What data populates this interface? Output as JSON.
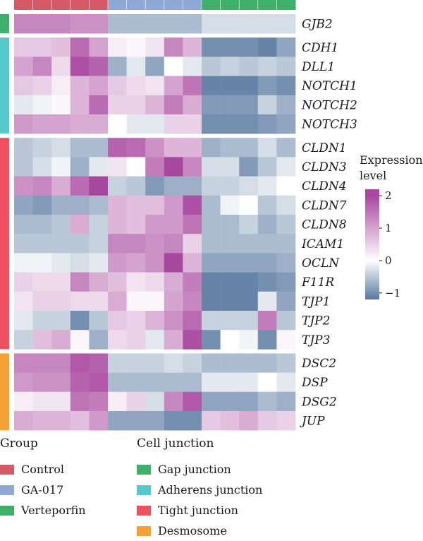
{
  "chart_data": {
    "type": "heatmap",
    "n_columns": 15,
    "column_groups": [
      "Control",
      "Control",
      "Control",
      "Control",
      "Control",
      "GA-017",
      "GA-017",
      "GA-017",
      "GA-017",
      "GA-017",
      "Verteporfin",
      "Verteporfin",
      "Verteporfin",
      "Verteporfin",
      "Verteporfin"
    ],
    "row_blocks": [
      {
        "junction": "Gap junction",
        "genes": [
          {
            "name": "GJB2",
            "values": [
              1.3,
              1.3,
              1.3,
              1.2,
              1.2,
              -0.6,
              -0.6,
              -0.6,
              -0.6,
              -0.6,
              -0.3,
              -0.3,
              -0.3,
              -0.3,
              -0.3
            ]
          }
        ]
      },
      {
        "junction": "Adherens junction",
        "genes": [
          {
            "name": "CDH1",
            "values": [
              0.6,
              0.6,
              0.7,
              1.6,
              1.0,
              0.2,
              0.1,
              0.3,
              1.3,
              0.8,
              -1.0,
              -1.0,
              -1.0,
              -1.1,
              -0.8
            ]
          },
          {
            "name": "DLL1",
            "values": [
              1.0,
              1.3,
              0.4,
              1.9,
              1.7,
              -0.7,
              -0.2,
              -0.8,
              0.0,
              -0.2,
              -0.5,
              -0.4,
              -0.5,
              -0.4,
              -0.5
            ]
          },
          {
            "name": "NOTCH1",
            "values": [
              0.6,
              0.5,
              0.2,
              0.8,
              1.0,
              0.6,
              0.4,
              0.3,
              1.0,
              1.5,
              -1.1,
              -1.1,
              -1.1,
              -0.9,
              -1.0
            ]
          },
          {
            "name": "NOTCH2",
            "values": [
              -0.2,
              -0.1,
              0.1,
              0.8,
              1.6,
              0.5,
              0.5,
              0.8,
              1.4,
              0.9,
              -0.9,
              -0.9,
              -0.9,
              -0.4,
              -0.7
            ]
          },
          {
            "name": "NOTCH3",
            "values": [
              1.1,
              1.0,
              1.0,
              0.9,
              0.9,
              0.0,
              -0.2,
              -0.2,
              0.5,
              0.5,
              -1.0,
              -1.0,
              -1.0,
              -0.9,
              -0.8
            ]
          }
        ]
      },
      {
        "junction": "Tight junction",
        "genes": [
          {
            "name": "CLDN1",
            "values": [
              -0.5,
              -0.4,
              -0.3,
              -0.6,
              -0.6,
              1.7,
              1.6,
              1.2,
              0.8,
              0.8,
              -0.7,
              -0.6,
              -0.6,
              -0.3,
              -0.6
            ]
          },
          {
            "name": "CLDN3",
            "values": [
              -0.5,
              -0.3,
              -0.1,
              -0.7,
              -0.2,
              0.3,
              0.0,
              1.4,
              2.0,
              1.3,
              -0.3,
              -0.3,
              -0.9,
              -0.5,
              -0.2
            ]
          },
          {
            "name": "CLDN4",
            "values": [
              1.2,
              1.3,
              0.9,
              1.6,
              2.0,
              -0.4,
              -0.5,
              -0.9,
              -0.7,
              -0.7,
              -0.4,
              -0.4,
              -0.3,
              -0.2,
              0.0
            ]
          },
          {
            "name": "CLDN7",
            "values": [
              -0.8,
              -0.9,
              -0.7,
              -0.7,
              -0.6,
              0.8,
              0.7,
              0.7,
              1.1,
              1.9,
              -0.6,
              -0.1,
              0.0,
              -0.5,
              -0.3
            ]
          },
          {
            "name": "CLDN8",
            "values": [
              -0.6,
              -0.6,
              -0.5,
              0.9,
              -0.4,
              0.8,
              0.7,
              1.1,
              1.1,
              1.5,
              -0.6,
              -0.6,
              -0.4,
              -0.7,
              -0.5
            ]
          },
          {
            "name": "ICAM1",
            "values": [
              -0.5,
              -0.5,
              -0.5,
              -0.5,
              -0.4,
              1.3,
              1.3,
              1.2,
              1.3,
              0.5,
              -0.6,
              -0.6,
              -0.6,
              -0.6,
              -0.6
            ]
          },
          {
            "name": "OCLN",
            "values": [
              -0.1,
              -0.1,
              -0.2,
              -0.3,
              -0.2,
              1.1,
              1.0,
              1.2,
              2.0,
              0.8,
              -0.8,
              -0.8,
              -0.8,
              -0.8,
              -0.7
            ]
          },
          {
            "name": "F11R",
            "values": [
              0.5,
              0.4,
              0.4,
              1.3,
              0.9,
              0.7,
              0.3,
              0.4,
              0.9,
              1.4,
              -1.1,
              -1.1,
              -1.1,
              -1.0,
              -0.9
            ]
          },
          {
            "name": "TJP1",
            "values": [
              0.3,
              0.5,
              0.5,
              0.4,
              0.4,
              0.9,
              0.1,
              0.1,
              1.0,
              1.3,
              -1.1,
              -1.1,
              -1.1,
              -0.2,
              -0.8
            ]
          },
          {
            "name": "TJP2",
            "values": [
              -0.2,
              -0.4,
              -0.4,
              -1.0,
              -0.5,
              0.6,
              0.5,
              0.8,
              1.2,
              1.6,
              -0.4,
              -0.4,
              -0.4,
              1.4,
              -0.5
            ]
          },
          {
            "name": "TJP3",
            "values": [
              -0.4,
              0.7,
              0.9,
              0.1,
              -0.7,
              0.4,
              0.5,
              -0.2,
              0.9,
              1.9,
              -1.0,
              0.0,
              -0.1,
              -1.0,
              0.1
            ]
          }
        ]
      },
      {
        "junction": "Desmosome",
        "genes": [
          {
            "name": "DSC2",
            "values": [
              1.3,
              1.3,
              1.3,
              1.8,
              1.7,
              -0.4,
              -0.4,
              -0.4,
              -0.3,
              -0.4,
              -0.6,
              -0.6,
              -0.6,
              -0.6,
              -0.5
            ]
          },
          {
            "name": "DSP",
            "values": [
              1.1,
              1.2,
              1.2,
              1.7,
              1.8,
              -0.6,
              -0.6,
              -0.6,
              -0.6,
              -0.6,
              -0.2,
              -0.2,
              -0.2,
              0.0,
              -0.2
            ]
          },
          {
            "name": "DSG2",
            "values": [
              0.2,
              0.3,
              0.3,
              1.5,
              1.4,
              0.2,
              0.5,
              -0.3,
              1.3,
              1.8,
              -0.8,
              -0.8,
              -0.8,
              -0.6,
              -0.7
            ]
          },
          {
            "name": "JUP",
            "values": [
              0.9,
              0.8,
              0.8,
              0.7,
              1.1,
              -0.8,
              -0.8,
              -0.8,
              -1.0,
              -1.0,
              0.6,
              0.7,
              0.9,
              0.6,
              0.5
            ]
          }
        ]
      }
    ],
    "color_scale": {
      "title_lines": [
        "Expression",
        "level"
      ],
      "min": -1.2,
      "max": 2.2,
      "ticks": [
        2,
        1,
        0,
        -1
      ],
      "tick_labels": [
        "2",
        "1",
        "0",
        "−1"
      ],
      "low_color": "#5878a0",
      "mid_color": "#ffffff",
      "high_color": "#a8479e"
    },
    "legend_group": {
      "title": "Group",
      "items": [
        {
          "label": "Control",
          "color": "#d45a68"
        },
        {
          "label": "GA-017",
          "color": "#8fa9d6"
        },
        {
          "label": "Verteporfin",
          "color": "#3eb06a"
        }
      ]
    },
    "legend_junction": {
      "title": "Cell junction",
      "items": [
        {
          "label": "Gap junction",
          "color": "#3eb06a"
        },
        {
          "label": "Adherens junction",
          "color": "#56c9cf"
        },
        {
          "label": "Tight junction",
          "color": "#ef5160"
        },
        {
          "label": "Desmosome",
          "color": "#f7a034"
        }
      ]
    }
  }
}
